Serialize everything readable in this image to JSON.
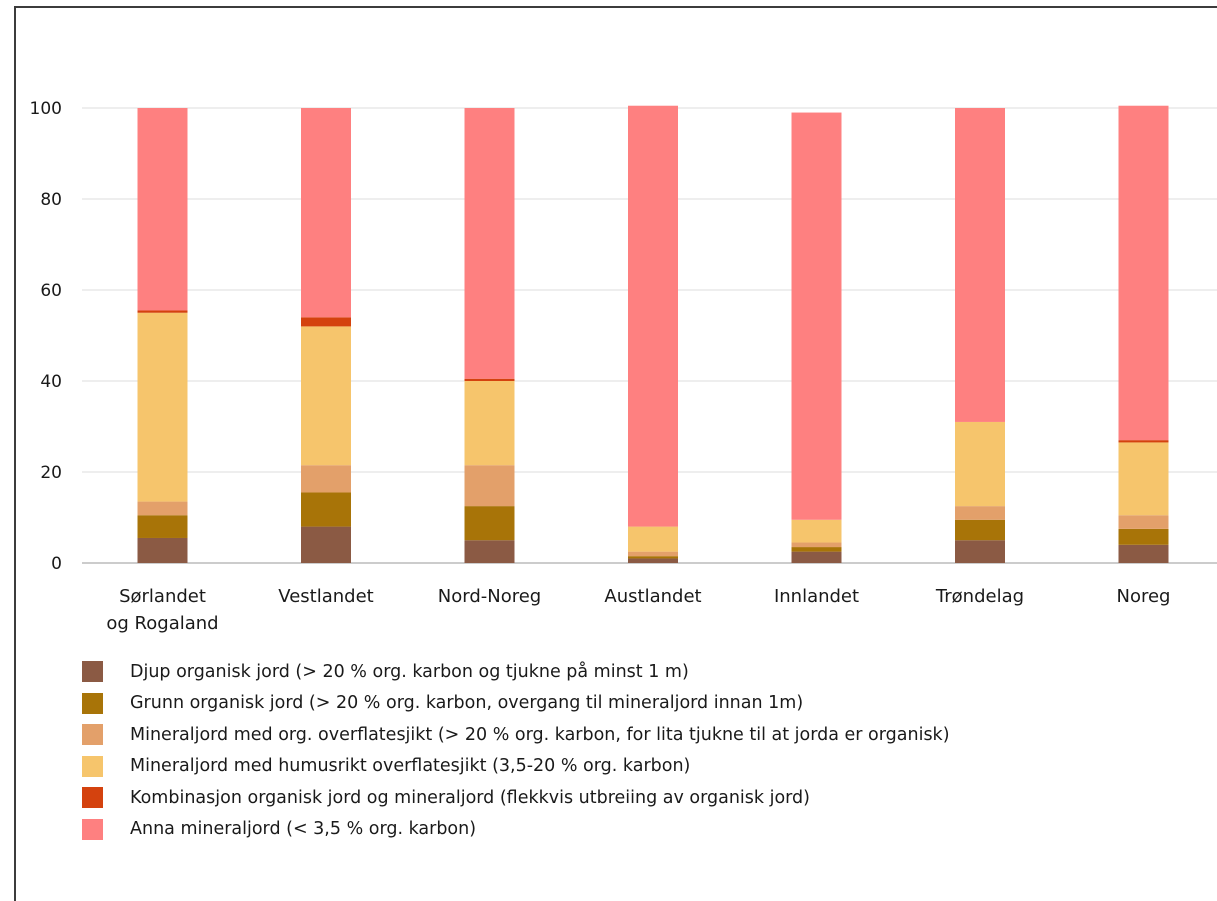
{
  "chart_data": {
    "type": "bar",
    "stacked": true,
    "categories": [
      [
        "Sørlandet",
        "og Rogaland"
      ],
      [
        "Vestlandet"
      ],
      [
        "Nord-Noreg"
      ],
      [
        "Austlandet"
      ],
      [
        "Innlandet"
      ],
      [
        "Trøndelag"
      ],
      [
        "Noreg"
      ]
    ],
    "series": [
      {
        "name": "Djup organisk jord (> 20 % org. karbon og tjukne på minst 1 m)",
        "color": "#8b5a44",
        "values": [
          5.5,
          8,
          5,
          1,
          2.5,
          5,
          4
        ]
      },
      {
        "name": "Grunn organisk jord (> 20 % org. karbon, overgang til mineraljord innan 1m)",
        "color": "#a87408",
        "values": [
          5,
          7.5,
          7.5,
          0.5,
          1,
          4.5,
          3.5
        ]
      },
      {
        "name": "Mineraljord med org. overflatesjikt (> 20 % org. karbon, for lita tjukne til at jorda er organisk)",
        "color": "#e3a06a",
        "values": [
          3,
          6,
          9,
          1,
          1,
          3,
          3
        ]
      },
      {
        "name": "Mineraljord med humusrikt overflatesjikt (3,5-20 % org. karbon)",
        "color": "#f6c56c",
        "values": [
          41.5,
          30.5,
          18.5,
          5.5,
          5,
          18.5,
          16
        ]
      },
      {
        "name": "Kombinasjon organisk jord og mineraljord (flekkvis utbreiing av organisk jord)",
        "color": "#d4420e",
        "values": [
          0.5,
          2,
          0.5,
          0,
          0,
          0,
          0.5
        ]
      },
      {
        "name": "Anna mineraljord (< 3,5 % org. karbon)",
        "color": "#fe8080",
        "values": [
          44.5,
          46,
          59.5,
          92.5,
          89.5,
          69,
          73.5
        ]
      }
    ],
    "yticks": [
      0,
      20,
      40,
      60,
      80,
      100
    ],
    "ylim": [
      0,
      110
    ],
    "grid": true,
    "legend_position": "bottom",
    "title": "",
    "xlabel": "",
    "ylabel": ""
  }
}
